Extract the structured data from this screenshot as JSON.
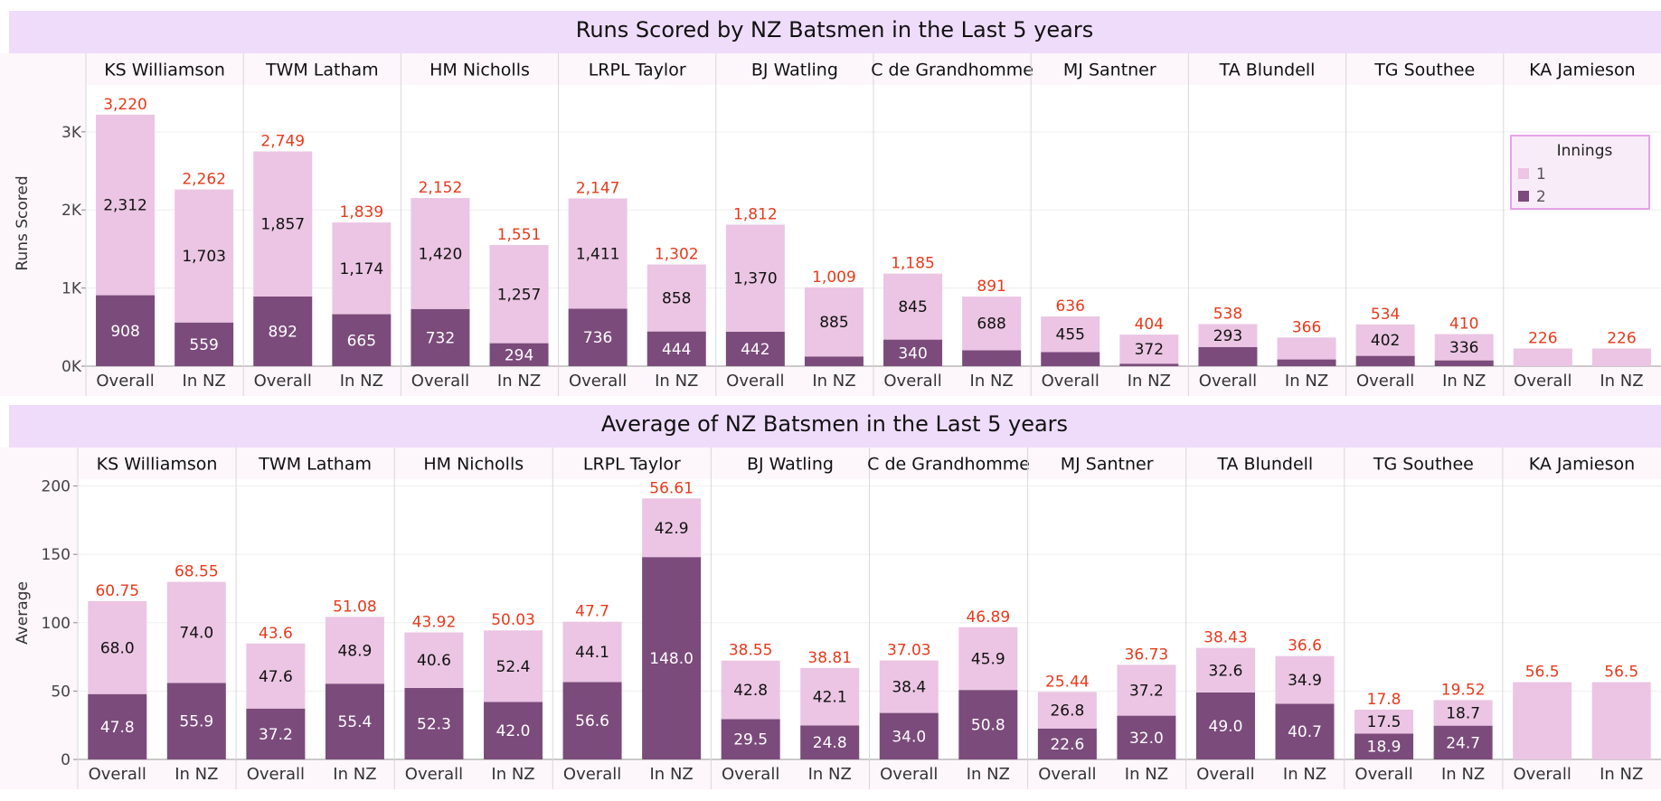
{
  "colors": {
    "title_band": "#efdcfb",
    "header_bg": "#fdf6fb",
    "innings_1": "#ebc5e3",
    "innings_2": "#7b4b7b",
    "total_label": "#e8391b",
    "text": "#222222",
    "legend_border": "#e6a3e6",
    "legend_bg": "#f9ecf9"
  },
  "legend": {
    "title": "Innings",
    "items": [
      "1",
      "2"
    ]
  },
  "chart_data": [
    {
      "type": "bar",
      "stacked": true,
      "title": "Runs Scored by NZ Batsmen in the Last 5 years",
      "ylabel": "Runs Scored",
      "ylim": [
        0,
        3600
      ],
      "yticks": [
        0,
        1000,
        2000,
        3000
      ],
      "ytick_labels": [
        "0K",
        "1K",
        "2K",
        "3K"
      ],
      "players": [
        "KS Williamson",
        "TWM Latham",
        "HM Nicholls",
        "LRPL Taylor",
        "BJ Watling",
        "C de Grandhomme",
        "MJ Santner",
        "TA Blundell",
        "TG Southee",
        "KA Jamieson"
      ],
      "categories": [
        "Overall",
        "In NZ"
      ],
      "series": [
        {
          "name": "1",
          "values": [
            [
              2312,
              1703
            ],
            [
              1857,
              1174
            ],
            [
              1420,
              1257
            ],
            [
              1411,
              858
            ],
            [
              1370,
              885
            ],
            [
              845,
              688
            ],
            [
              455,
              372
            ],
            [
              293,
              280
            ],
            [
              402,
              336
            ],
            [
              226,
              226
            ]
          ]
        },
        {
          "name": "2",
          "values": [
            [
              908,
              559
            ],
            [
              892,
              665
            ],
            [
              732,
              294
            ],
            [
              736,
              444
            ],
            [
              442,
              124
            ],
            [
              340,
              203
            ],
            [
              181,
              32
            ],
            [
              245,
              86
            ],
            [
              132,
              74
            ],
            [
              0,
              0
            ]
          ]
        }
      ],
      "labels_1": [
        [
          "2,312",
          "1,703"
        ],
        [
          "1,857",
          "1,174"
        ],
        [
          "1,420",
          "1,257"
        ],
        [
          "1,411",
          "858"
        ],
        [
          "1,370",
          "885"
        ],
        [
          "845",
          "688"
        ],
        [
          "455",
          "372"
        ],
        [
          "293",
          ""
        ],
        [
          "402",
          "336"
        ],
        [
          "",
          ""
        ]
      ],
      "labels_2": [
        [
          "908",
          "559"
        ],
        [
          "892",
          "665"
        ],
        [
          "732",
          "294"
        ],
        [
          "736",
          "444"
        ],
        [
          "442",
          ""
        ],
        [
          "340",
          ""
        ],
        [
          "",
          ""
        ],
        [
          "",
          ""
        ],
        [
          "",
          ""
        ],
        [
          "",
          ""
        ]
      ],
      "totals": [
        [
          "3,220",
          "2,262"
        ],
        [
          "2,749",
          "1,839"
        ],
        [
          "2,152",
          "1,551"
        ],
        [
          "2,147",
          "1,302"
        ],
        [
          "1,812",
          "1,009"
        ],
        [
          "1,185",
          "891"
        ],
        [
          "636",
          "404"
        ],
        [
          "538",
          "366"
        ],
        [
          "534",
          "410"
        ],
        [
          "226",
          "226"
        ]
      ]
    },
    {
      "type": "bar",
      "stacked": true,
      "title": "Average of NZ Batsmen in the Last 5 years",
      "ylabel": "Average",
      "ylim": [
        0,
        205
      ],
      "yticks": [
        0,
        50,
        100,
        150,
        200
      ],
      "ytick_labels": [
        "0",
        "50",
        "100",
        "150",
        "200"
      ],
      "players": [
        "KS Williamson",
        "TWM Latham",
        "HM Nicholls",
        "LRPL Taylor",
        "BJ Watling",
        "C de Grandhomme",
        "MJ Santner",
        "TA Blundell",
        "TG Southee",
        "KA Jamieson"
      ],
      "categories": [
        "Overall",
        "In NZ"
      ],
      "series": [
        {
          "name": "1",
          "values": [
            [
              68.0,
              74.0
            ],
            [
              47.6,
              48.9
            ],
            [
              40.6,
              52.4
            ],
            [
              44.1,
              42.9
            ],
            [
              42.8,
              42.1
            ],
            [
              38.4,
              45.9
            ],
            [
              26.8,
              37.2
            ],
            [
              32.6,
              34.9
            ],
            [
              17.5,
              18.7
            ],
            [
              56.5,
              56.5
            ]
          ]
        },
        {
          "name": "2",
          "values": [
            [
              47.8,
              55.9
            ],
            [
              37.2,
              55.4
            ],
            [
              52.3,
              42.0
            ],
            [
              56.6,
              148.0
            ],
            [
              29.5,
              24.8
            ],
            [
              34.0,
              50.8
            ],
            [
              22.6,
              32.0
            ],
            [
              49.0,
              40.7
            ],
            [
              18.9,
              24.7
            ],
            [
              0,
              0
            ]
          ]
        }
      ],
      "labels_1": [
        [
          "68.0",
          "74.0"
        ],
        [
          "47.6",
          "48.9"
        ],
        [
          "40.6",
          "52.4"
        ],
        [
          "44.1",
          "42.9"
        ],
        [
          "42.8",
          "42.1"
        ],
        [
          "38.4",
          "45.9"
        ],
        [
          "26.8",
          "37.2"
        ],
        [
          "32.6",
          "34.9"
        ],
        [
          "17.5",
          "18.7"
        ],
        [
          "",
          ""
        ]
      ],
      "labels_2": [
        [
          "47.8",
          "55.9"
        ],
        [
          "37.2",
          "55.4"
        ],
        [
          "52.3",
          "42.0"
        ],
        [
          "56.6",
          "148.0"
        ],
        [
          "29.5",
          "24.8"
        ],
        [
          "34.0",
          "50.8"
        ],
        [
          "22.6",
          "32.0"
        ],
        [
          "49.0",
          "40.7"
        ],
        [
          "18.9",
          "24.7"
        ],
        [
          "",
          ""
        ]
      ],
      "totals": [
        [
          "60.75",
          "68.55"
        ],
        [
          "43.6",
          "51.08"
        ],
        [
          "43.92",
          "50.03"
        ],
        [
          "47.7",
          "56.61"
        ],
        [
          "38.55",
          "38.81"
        ],
        [
          "37.03",
          "46.89"
        ],
        [
          "25.44",
          "36.73"
        ],
        [
          "38.43",
          "36.6"
        ],
        [
          "17.8",
          "19.52"
        ],
        [
          "56.5",
          "56.5"
        ]
      ]
    }
  ]
}
